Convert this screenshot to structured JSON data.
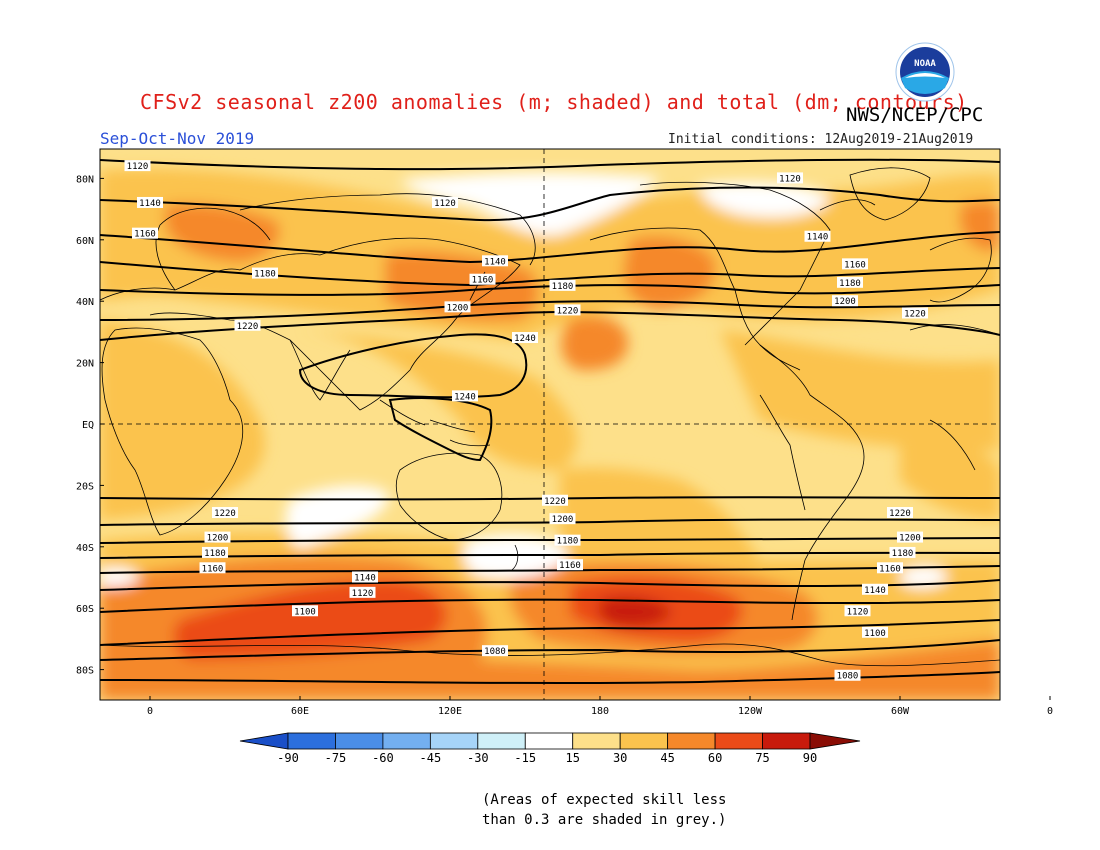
{
  "title": "CFSv2 seasonal z200 anomalies (m; shaded) and total (dm; contours)",
  "agency": "NWS/NCEP/CPC",
  "logo_text": "NOAA",
  "season": "Sep-Oct-Nov 2019",
  "initial_conditions": "Initial conditions: 12Aug2019-21Aug2019",
  "note_line1": "(Areas of expected skill less",
  "note_line2": "than 0.3 are shaded in grey.)",
  "colors": {
    "title": "#e0201a",
    "season": "#2b50d8",
    "shade_15_30": "#fde08a",
    "shade_30_45": "#fbc34e",
    "shade_45_60": "#f5882a",
    "shade_60_75": "#eb4b18",
    "shade_75_90": "#c81a0c",
    "contour": "#000000",
    "coast": "#000000"
  },
  "map": {
    "lon_labels": [
      "0",
      "60E",
      "120E",
      "180",
      "120W",
      "60W",
      "0"
    ],
    "lat_labels": [
      "80N",
      "60N",
      "40N",
      "20N",
      "EQ",
      "20S",
      "40S",
      "60S",
      "80S"
    ]
  },
  "contours": {
    "labels": [
      {
        "text": "1120",
        "lon": -5,
        "lat": 84
      },
      {
        "text": "1120",
        "lon": 118,
        "lat": 72
      },
      {
        "text": "1120",
        "lon": 256,
        "lat": 80
      },
      {
        "text": "1140",
        "lon": 0,
        "lat": 72
      },
      {
        "text": "1140",
        "lon": 138,
        "lat": 53
      },
      {
        "text": "1140",
        "lon": 267,
        "lat": 61
      },
      {
        "text": "1160",
        "lon": -2,
        "lat": 62
      },
      {
        "text": "1160",
        "lon": 133,
        "lat": 47
      },
      {
        "text": "1160",
        "lon": 282,
        "lat": 52
      },
      {
        "text": "1180",
        "lon": 46,
        "lat": 49
      },
      {
        "text": "1180",
        "lon": 165,
        "lat": 45
      },
      {
        "text": "1180",
        "lon": 280,
        "lat": 46
      },
      {
        "text": "1200",
        "lon": 123,
        "lat": 38
      },
      {
        "text": "1200",
        "lon": 278,
        "lat": 40
      },
      {
        "text": "1220",
        "lon": 39,
        "lat": 32
      },
      {
        "text": "1220",
        "lon": 167,
        "lat": 37
      },
      {
        "text": "1220",
        "lon": 306,
        "lat": 36
      },
      {
        "text": "1240",
        "lon": 150,
        "lat": 28
      },
      {
        "text": "1240",
        "lon": 126,
        "lat": 9
      },
      {
        "text": "1220",
        "lon": 162,
        "lat": -25
      },
      {
        "text": "1220",
        "lon": 30,
        "lat": -29
      },
      {
        "text": "1220",
        "lon": 300,
        "lat": -29
      },
      {
        "text": "1200",
        "lon": 165,
        "lat": -31
      },
      {
        "text": "1200",
        "lon": 27,
        "lat": -37
      },
      {
        "text": "1200",
        "lon": 304,
        "lat": -37
      },
      {
        "text": "1180",
        "lon": 167,
        "lat": -38
      },
      {
        "text": "1180",
        "lon": 26,
        "lat": -42
      },
      {
        "text": "1180",
        "lon": 301,
        "lat": -42
      },
      {
        "text": "1160",
        "lon": 168,
        "lat": -46
      },
      {
        "text": "1160",
        "lon": 25,
        "lat": -47
      },
      {
        "text": "1160",
        "lon": 296,
        "lat": -47
      },
      {
        "text": "1140",
        "lon": 86,
        "lat": -50
      },
      {
        "text": "1140",
        "lon": 290,
        "lat": -54
      },
      {
        "text": "1120",
        "lon": 85,
        "lat": -55
      },
      {
        "text": "1120",
        "lon": 283,
        "lat": -61
      },
      {
        "text": "1100",
        "lon": 62,
        "lat": -61
      },
      {
        "text": "1100",
        "lon": 290,
        "lat": -68
      },
      {
        "text": "1080",
        "lon": 138,
        "lat": -74
      },
      {
        "text": "1080",
        "lon": 279,
        "lat": -82
      }
    ]
  },
  "colorbar": {
    "labels": [
      "-90",
      "-75",
      "-60",
      "-45",
      "-30",
      "-15",
      "15",
      "30",
      "45",
      "60",
      "75",
      "90"
    ],
    "colors": [
      "#1a4fc8",
      "#2c6fdd",
      "#4a8ee8",
      "#73aff0",
      "#a6d4f8",
      "#cff0f8",
      "#ffffff",
      "#fde08a",
      "#fbc34e",
      "#f5882a",
      "#eb4b18",
      "#c81a0c",
      "#8a0d05"
    ]
  }
}
